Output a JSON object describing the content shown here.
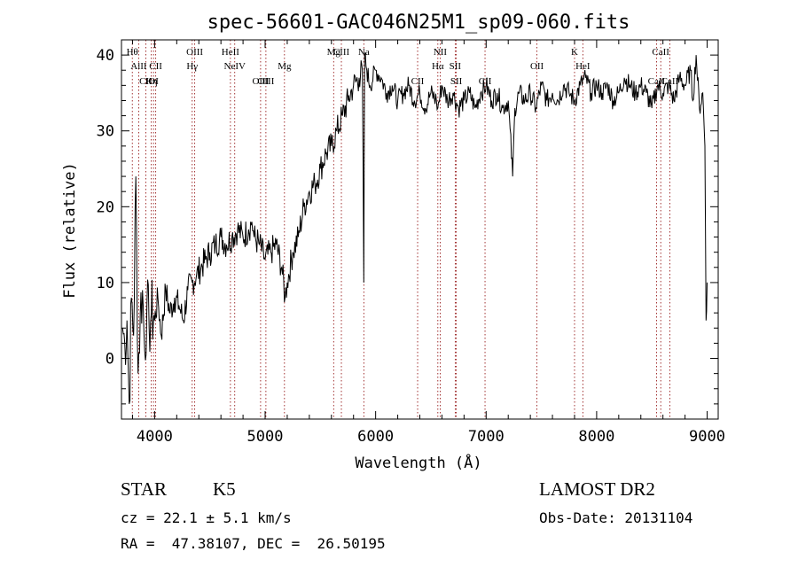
{
  "chart_data": {
    "type": "line",
    "title": "spec-56601-GAC046N25M1_sp09-060.fits",
    "xlabel": "Wavelength (Å)",
    "ylabel": "Flux (relative)",
    "xlim": [
      3700,
      9100
    ],
    "ylim": [
      -8,
      42
    ],
    "xticks": [
      4000,
      5000,
      6000,
      7000,
      8000,
      9000
    ],
    "yticks": [
      0,
      10,
      20,
      30,
      40
    ],
    "grid": false,
    "line_color": "#000000",
    "marker_color": "#8b0000",
    "series": [
      {
        "x": [
          3710,
          3730,
          3750,
          3770,
          3790,
          3810,
          3830,
          3850,
          3870,
          3890,
          3910,
          3930,
          3950,
          3970,
          4000,
          4030,
          4060,
          4100,
          4140,
          4180,
          4220,
          4260,
          4300,
          4340,
          4380,
          4420,
          4460,
          4500,
          4550,
          4600,
          4650,
          4700,
          4750,
          4800,
          4850,
          4880,
          4900,
          4950,
          5000,
          5050,
          5100,
          5150,
          5180,
          5200,
          5250,
          5300,
          5350,
          5400,
          5450,
          5500,
          5550,
          5600,
          5650,
          5700,
          5750,
          5800,
          5850,
          5880,
          5893,
          5900,
          5920,
          5950,
          6000,
          6050,
          6100,
          6150,
          6200,
          6250,
          6300,
          6350,
          6400,
          6450,
          6500,
          6550,
          6563,
          6600,
          6650,
          6700,
          6750,
          6800,
          6850,
          6900,
          6950,
          7000,
          7050,
          7100,
          7150,
          7200,
          7240,
          7260,
          7300,
          7350,
          7400,
          7450,
          7500,
          7550,
          7600,
          7650,
          7700,
          7750,
          7800,
          7850,
          7900,
          7950,
          8000,
          8050,
          8100,
          8150,
          8200,
          8250,
          8300,
          8350,
          8400,
          8450,
          8500,
          8550,
          8600,
          8650,
          8700,
          8750,
          8800,
          8850,
          8870,
          8900,
          8930,
          8960,
          8980,
          8990,
          9000
        ],
        "y": [
          4,
          2,
          5,
          -6,
          8,
          3,
          24,
          -2,
          6,
          9,
          1,
          7,
          4,
          6,
          5,
          8,
          3,
          9,
          6,
          8,
          7,
          5,
          9,
          10,
          11,
          12,
          13,
          14,
          15,
          16,
          15,
          16,
          17,
          16,
          17,
          18,
          16,
          15,
          13,
          14,
          15,
          12,
          8,
          10,
          14,
          16,
          20,
          22,
          23,
          25,
          27,
          28,
          30,
          32,
          34,
          36,
          37,
          38,
          10,
          40,
          38,
          36,
          38,
          37,
          35,
          36,
          34,
          35,
          36,
          34,
          35,
          33,
          35,
          34,
          33,
          36,
          34,
          35,
          33,
          34,
          35,
          33,
          35,
          36,
          34,
          35,
          33,
          34,
          24,
          33,
          35,
          34,
          35,
          33,
          36,
          34,
          35,
          34,
          36,
          35,
          34,
          36,
          37,
          35,
          36,
          35,
          36,
          34,
          35,
          37,
          36,
          35,
          36,
          35,
          33,
          36,
          35,
          36,
          34,
          37,
          36,
          38,
          34,
          40,
          33,
          35,
          28,
          5,
          10
        ]
      }
    ],
    "lines": [
      {
        "label": "Hθ",
        "x": 3798,
        "row": 1
      },
      {
        "label": "AlII",
        "x": 3856,
        "row": 2
      },
      {
        "label": "CII",
        "x": 3920,
        "row": 3
      },
      {
        "label": "Hη",
        "x": 3970,
        "row": 3
      },
      {
        "label": "CII",
        "x": 4010,
        "row": 2
      },
      {
        "label": "OI",
        "x": 3990,
        "row": 3
      },
      {
        "label": "OIII",
        "x": 4363,
        "row": 1
      },
      {
        "label": "Hγ",
        "x": 4340,
        "row": 2
      },
      {
        "label": "HeII",
        "x": 4686,
        "row": 1
      },
      {
        "label": "NeIV",
        "x": 4725,
        "row": 2
      },
      {
        "label": "OIII",
        "x": 4959,
        "row": 3
      },
      {
        "label": "OIII",
        "x": 5007,
        "row": 3
      },
      {
        "label": "Mg",
        "x": 5175,
        "row": 2
      },
      {
        "label": "Mg",
        "x": 5620,
        "row": 1
      },
      {
        "label": "CIII",
        "x": 5690,
        "row": 1
      },
      {
        "label": "Na",
        "x": 5893,
        "row": 1
      },
      {
        "label": "CII",
        "x": 6380,
        "row": 3
      },
      {
        "label": "NII",
        "x": 6584,
        "row": 1
      },
      {
        "label": "Hα",
        "x": 6563,
        "row": 2
      },
      {
        "label": "SII",
        "x": 6720,
        "row": 2
      },
      {
        "label": "SII",
        "x": 6730,
        "row": 3
      },
      {
        "label": "CII",
        "x": 6990,
        "row": 3
      },
      {
        "label": "OII",
        "x": 7460,
        "row": 2
      },
      {
        "label": "K",
        "x": 7800,
        "row": 1
      },
      {
        "label": "HeI",
        "x": 7875,
        "row": 2
      },
      {
        "label": "CaII",
        "x": 8580,
        "row": 1
      },
      {
        "label": "CaII",
        "x": 8542,
        "row": 3
      },
      {
        "label": "CaII",
        "x": 8662,
        "row": 3
      }
    ]
  },
  "info": {
    "class": "STAR",
    "subclass": "K5",
    "survey": "LAMOST DR2",
    "cz": "cz = 22.1 ± 5.1 km/s",
    "obs_date": "Obs-Date: 20131104",
    "radec": "RA =  47.38107, DEC =  26.50195"
  }
}
